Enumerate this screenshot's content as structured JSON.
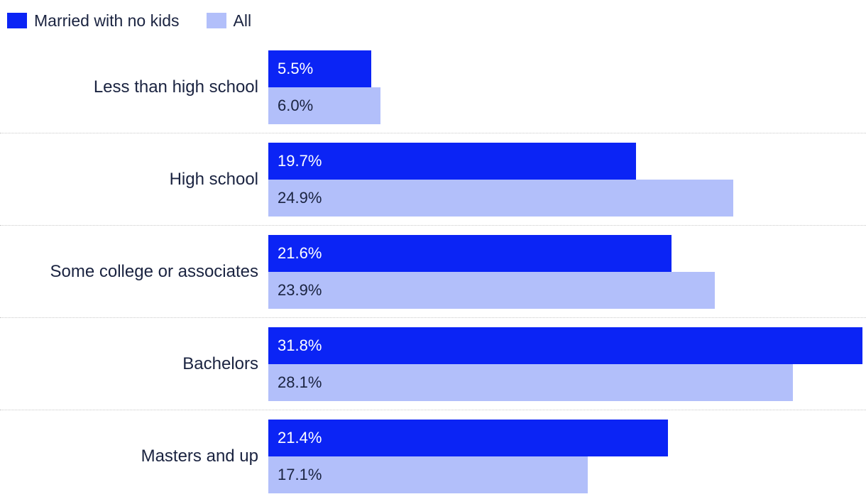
{
  "chart_data": {
    "type": "bar",
    "orientation": "horizontal",
    "title": "",
    "xlabel": "",
    "ylabel": "",
    "xlim": [
      0,
      32
    ],
    "grid": "dotted-row-separators",
    "legend_position": "top-left",
    "categories": [
      "Less than high school",
      "High school",
      "Some college or associates",
      "Bachelors",
      "Masters and up"
    ],
    "series": [
      {
        "name": "Married with no kids",
        "key": "married-no-kids",
        "color": "#0b24f5",
        "value_label_color": "#ffffff",
        "values": [
          5.5,
          19.7,
          21.6,
          31.8,
          21.4
        ],
        "labels": [
          "5.5%",
          "19.7%",
          "21.6%",
          "31.8%",
          "21.4%"
        ]
      },
      {
        "name": "All",
        "key": "all",
        "color": "#b2bffa",
        "value_label_color": "#1a2340",
        "values": [
          6.0,
          24.9,
          23.9,
          28.1,
          17.1
        ],
        "labels": [
          "6.0%",
          "24.9%",
          "23.9%",
          "28.1%",
          "17.1%"
        ]
      }
    ]
  }
}
